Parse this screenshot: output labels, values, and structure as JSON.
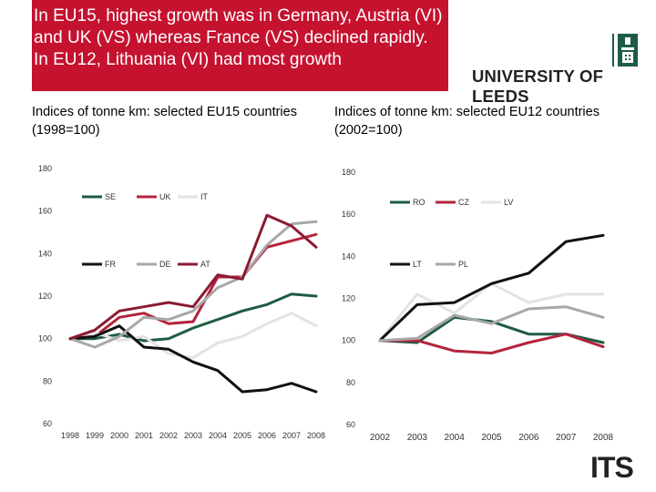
{
  "header": {
    "title": "In EU15, highest growth was in Germany, Austria (VI) and UK (VS) whereas France (VS) declined rapidly. In EU12, Lithuania (VI) had most growth",
    "logo_text": "UNIVERSITY OF LEEDS",
    "brand_color": "#c4122f",
    "its_logo": "ITS"
  },
  "chart_data": [
    {
      "type": "line",
      "title": "Indices of tonne km: selected EU15 countries (1998=100)",
      "x": [
        "1998",
        "1999",
        "2000",
        "2001",
        "2002",
        "2003",
        "2004",
        "2005",
        "2006",
        "2007",
        "2008"
      ],
      "yticks": [
        "60",
        "80",
        "100",
        "120",
        "140",
        "160",
        "180"
      ],
      "ylim": [
        60,
        180
      ],
      "series": [
        {
          "name": "SE",
          "color": "#1f5c45",
          "values": [
            100,
            100,
            102,
            99,
            100,
            105,
            109,
            113,
            116,
            121,
            120
          ]
        },
        {
          "name": "UK",
          "color": "#b5233d",
          "values": [
            100,
            101,
            110,
            112,
            107,
            108,
            129,
            129,
            143,
            146,
            149
          ]
        },
        {
          "name": "IT",
          "color": "#e3e3e3",
          "values": [
            100,
            103,
            99,
            101,
            93,
            91,
            98,
            101,
            107,
            112,
            106
          ]
        },
        {
          "name": "FR",
          "color": "#111111",
          "values": [
            100,
            101,
            106,
            96,
            95,
            89,
            85,
            75,
            76,
            79,
            75
          ]
        },
        {
          "name": "DE",
          "color": "#a8a8a8",
          "values": [
            100,
            96,
            101,
            110,
            109,
            113,
            124,
            129,
            144,
            154,
            155
          ]
        },
        {
          "name": "AT",
          "color": "#8b1a33",
          "values": [
            100,
            104,
            113,
            115,
            117,
            115,
            130,
            128,
            158,
            153,
            143
          ]
        }
      ]
    },
    {
      "type": "line",
      "title": "Indices of tonne km: selected EU12 countries (2002=100)",
      "x": [
        "2002",
        "2003",
        "2004",
        "2005",
        "2006",
        "2007",
        "2008"
      ],
      "yticks": [
        "60",
        "80",
        "100",
        "120",
        "140",
        "160",
        "180"
      ],
      "ylim": [
        60,
        180
      ],
      "series": [
        {
          "name": "RO",
          "color": "#1f5c45",
          "values": [
            100,
            99,
            111,
            109,
            103,
            103,
            99
          ]
        },
        {
          "name": "CZ",
          "color": "#b5233d",
          "values": [
            100,
            100,
            95,
            94,
            99,
            103,
            97
          ]
        },
        {
          "name": "LV",
          "color": "#e3e3e3",
          "values": [
            100,
            122,
            113,
            127,
            118,
            122,
            122
          ]
        },
        {
          "name": "LT",
          "color": "#111111",
          "values": [
            100,
            117,
            118,
            127,
            132,
            147,
            150
          ]
        },
        {
          "name": "PL",
          "color": "#a8a8a8",
          "values": [
            100,
            101,
            112,
            108,
            115,
            116,
            111
          ]
        }
      ]
    }
  ]
}
